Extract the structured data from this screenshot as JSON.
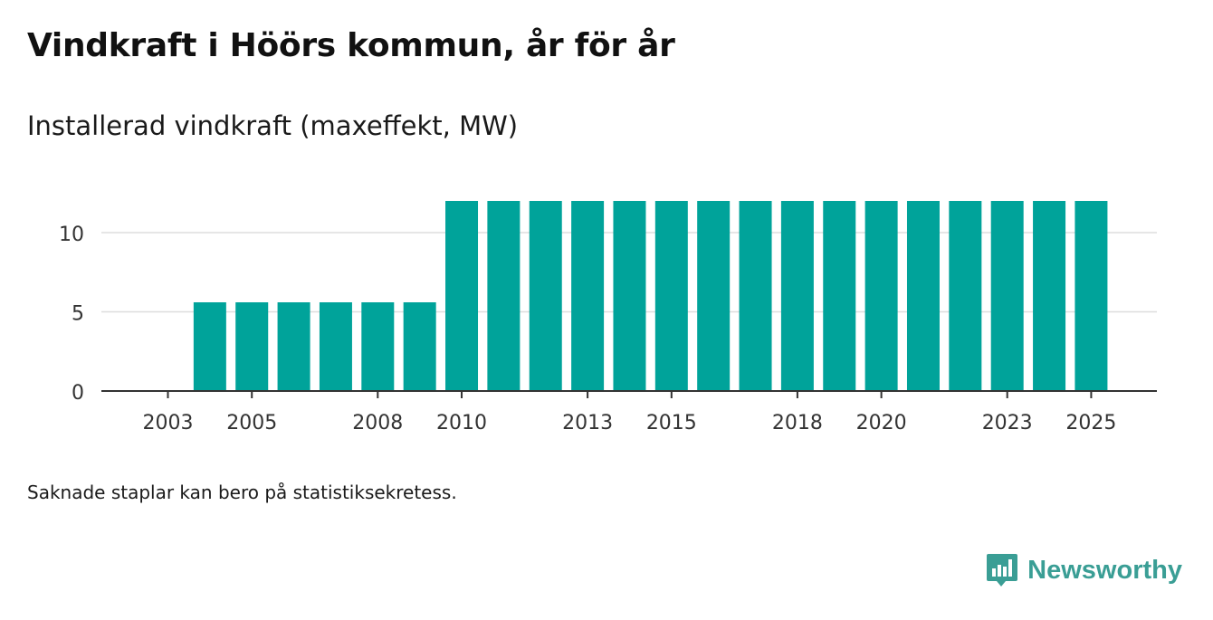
{
  "chart_data": {
    "type": "bar",
    "title": "Vindkraft i Höörs kommun, år för år",
    "subtitle": "Installerad vindkraft (maxeffekt, MW)",
    "categories": [
      2003,
      2004,
      2005,
      2006,
      2007,
      2008,
      2009,
      2010,
      2011,
      2012,
      2013,
      2014,
      2015,
      2016,
      2017,
      2018,
      2019,
      2020,
      2021,
      2022,
      2023,
      2024,
      2025
    ],
    "values": [
      0,
      5.6,
      5.6,
      5.6,
      5.6,
      5.6,
      5.6,
      12,
      12,
      12,
      12,
      12,
      12,
      12,
      12,
      12,
      12,
      12,
      12,
      12,
      12,
      12,
      12
    ],
    "x_tick_labels": [
      "2003",
      "2005",
      "2008",
      "2010",
      "2013",
      "2015",
      "2018",
      "2020",
      "2023",
      "2025"
    ],
    "y_ticks": [
      0,
      5,
      10
    ],
    "ylim": [
      0,
      12
    ],
    "xlabel": "",
    "ylabel": "",
    "grid": true,
    "bar_color": "#00a39a"
  },
  "footnote": "Saknade staplar kan bero på statistiksekretess.",
  "brand": {
    "name": "Newsworthy",
    "icon": "newsworthy-logo-icon",
    "color": "#3a9e95"
  }
}
